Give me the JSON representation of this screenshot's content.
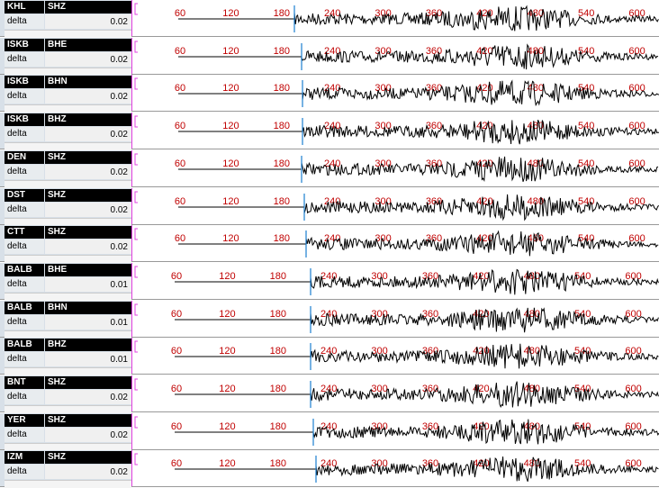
{
  "time_ticks": [
    60,
    120,
    180,
    240,
    300,
    360,
    420,
    480,
    540,
    600
  ],
  "delta_label": "delta",
  "traces": [
    {
      "station": "KHL",
      "channel": "SHZ",
      "delta": 0.02
    },
    {
      "station": "ISKB",
      "channel": "BHE",
      "delta": 0.02
    },
    {
      "station": "ISKB",
      "channel": "BHN",
      "delta": 0.02
    },
    {
      "station": "ISKB",
      "channel": "BHZ",
      "delta": 0.02
    },
    {
      "station": "DEN",
      "channel": "SHZ",
      "delta": 0.02
    },
    {
      "station": "DST",
      "channel": "SHZ",
      "delta": 0.02
    },
    {
      "station": "CTT",
      "channel": "SHZ",
      "delta": 0.02
    },
    {
      "station": "BALB",
      "channel": "BHE",
      "delta": 0.01
    },
    {
      "station": "BALB",
      "channel": "BHN",
      "delta": 0.01
    },
    {
      "station": "BALB",
      "channel": "BHZ",
      "delta": 0.01
    },
    {
      "station": "BNT",
      "channel": "SHZ",
      "delta": 0.02
    },
    {
      "station": "YER",
      "channel": "SHZ",
      "delta": 0.02
    },
    {
      "station": "IZM",
      "channel": "SHZ",
      "delta": 0.02
    }
  ]
}
